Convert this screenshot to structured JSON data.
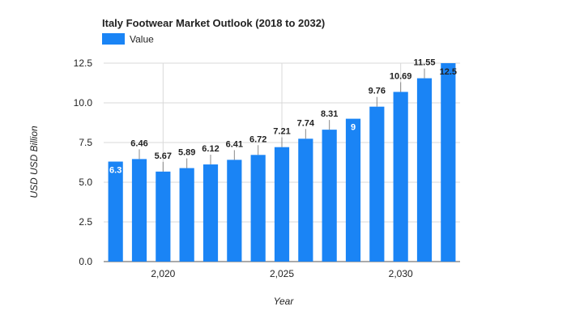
{
  "colors": {
    "bar": "#1a84f5",
    "grid": "#d9d9d9",
    "axis": "#555555",
    "text": "#222222",
    "label_inside": "#ffffff"
  },
  "chart_data": {
    "type": "bar",
    "title": "Italy Footwear Market Outlook (2018 to 2032)",
    "xlabel": "Year",
    "ylabel": "USD USD Billion",
    "legend": {
      "position": "top-left",
      "entries": [
        "Value"
      ]
    },
    "ylim": [
      0,
      12.5
    ],
    "y_ticks": [
      "0.0",
      "2.5",
      "5.0",
      "7.5",
      "10.0",
      "12.5"
    ],
    "y_tick_values": [
      0,
      2.5,
      5,
      7.5,
      10,
      12.5
    ],
    "x_ticks": [
      "2,020",
      "2,025",
      "2,030"
    ],
    "x_tick_values": [
      2020,
      2025,
      2030
    ],
    "grid": true,
    "series": [
      {
        "name": "Value",
        "x": [
          2018,
          2019,
          2020,
          2021,
          2022,
          2023,
          2024,
          2025,
          2026,
          2027,
          2028,
          2029,
          2030,
          2031,
          2032
        ],
        "values": [
          6.3,
          6.46,
          5.67,
          5.89,
          6.12,
          6.41,
          6.72,
          7.21,
          7.74,
          8.31,
          9,
          9.76,
          10.69,
          11.55,
          12.5
        ],
        "labels": [
          "6.3",
          "6.46",
          "5.67",
          "5.89",
          "6.12",
          "6.41",
          "6.72",
          "7.21",
          "7.74",
          "8.31",
          "9",
          "9.76",
          "10.69",
          "11.55",
          "12.5"
        ],
        "label_inside": [
          true,
          false,
          false,
          false,
          false,
          false,
          false,
          false,
          false,
          false,
          true,
          false,
          false,
          false,
          true
        ]
      }
    ]
  }
}
